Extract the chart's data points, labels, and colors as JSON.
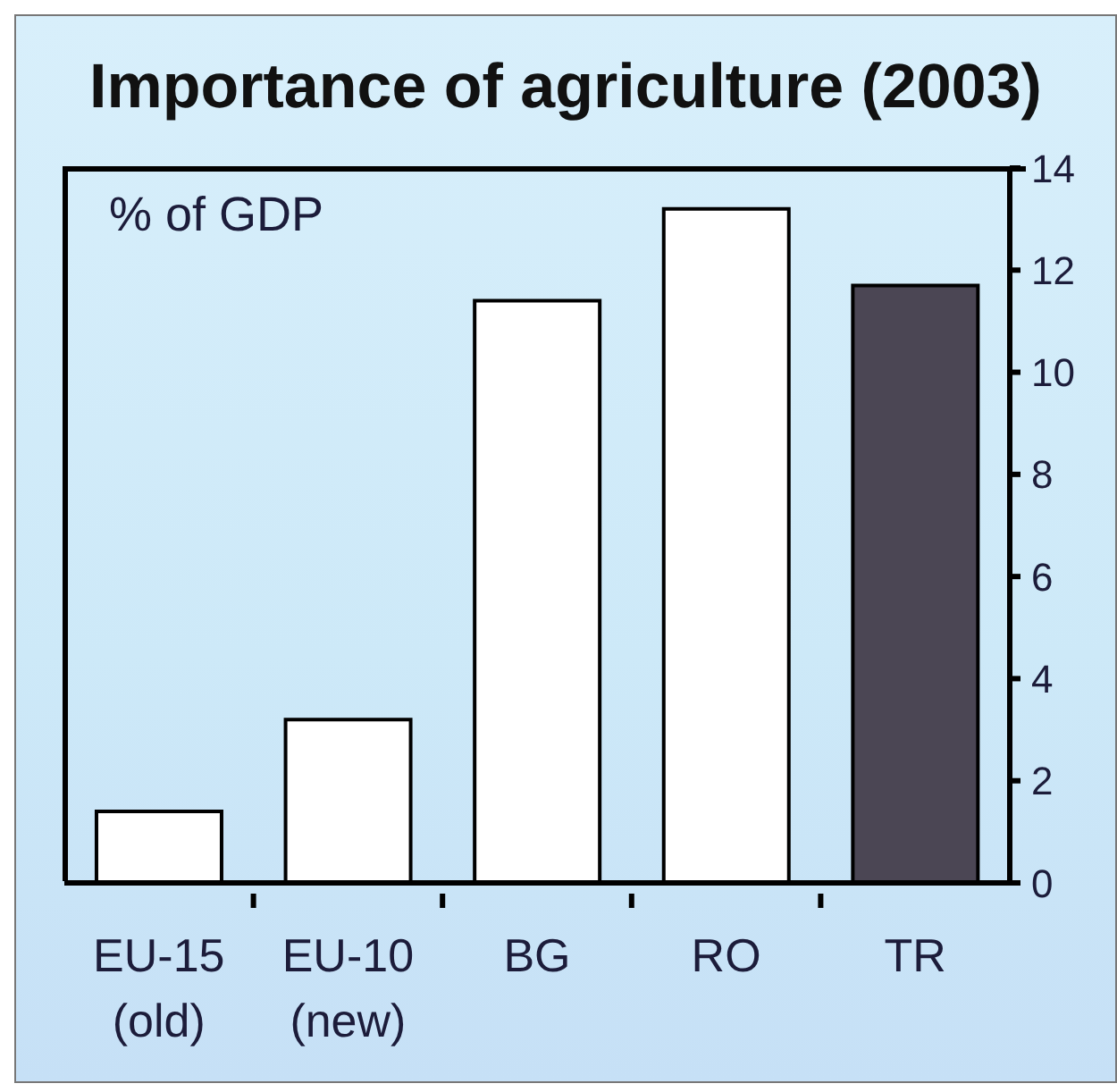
{
  "chart_data": {
    "type": "bar",
    "title": "Importance of agriculture (2003)",
    "ylabel": "% of GDP",
    "categories": [
      "EU-15 (old)",
      "EU-10 (new)",
      "BG",
      "RO",
      "TR"
    ],
    "values": [
      1.4,
      3.2,
      11.4,
      13.2,
      11.7
    ],
    "colors": [
      "#ffffff",
      "#ffffff",
      "#ffffff",
      "#ffffff",
      "#4b4654"
    ],
    "ylim": [
      0,
      14
    ],
    "yticks": [
      0,
      2,
      4,
      6,
      8,
      10,
      12,
      14
    ]
  }
}
